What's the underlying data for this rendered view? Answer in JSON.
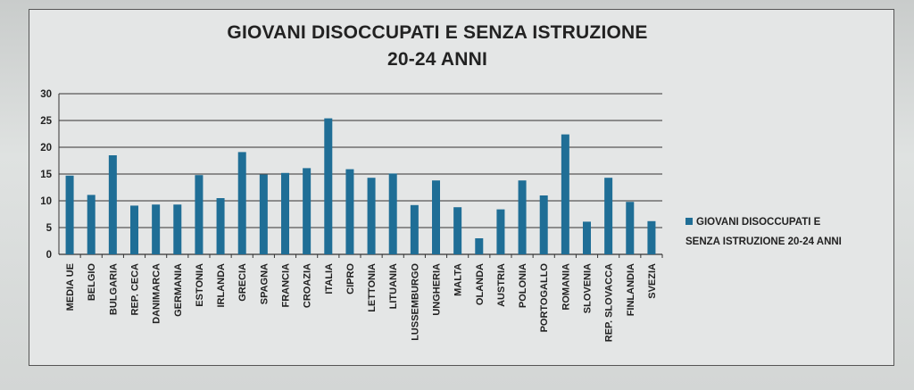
{
  "chart_data": {
    "type": "bar",
    "title_line1": "GIOVANI DISOCCUPATI E SENZA ISTRUZIONE",
    "title_line2": "20-24 ANNI",
    "categories": [
      "MEDIA UE",
      "BELGIO",
      "BULGARIA",
      "REP. CECA",
      "DANIMARCA",
      "GERMANIA",
      "ESTONIA",
      "IRLANDA",
      "GRECIA",
      "SPAGNA",
      "FRANCIA",
      "CROAZIA",
      "ITALIA",
      "CIPRO",
      "LETTONIA",
      "LITUANIA",
      "LUSSEMBURGO",
      "UNGHERIA",
      "MALTA",
      "OLANDA",
      "AUSTRIA",
      "POLONIA",
      "PORTOGALLO",
      "ROMANIA",
      "SLOVENIA",
      "REP. SLOVACCA",
      "FINLANDIA",
      "SVEZIA"
    ],
    "series": [
      {
        "name_line1": "GIOVANI DISOCCUPATI E",
        "name_line2": "SENZA ISTRUZIONE  20-24 ANNI",
        "values": [
          14.7,
          11.1,
          18.5,
          9.1,
          9.3,
          9.3,
          14.8,
          10.5,
          19.1,
          14.9,
          15.2,
          16.1,
          25.4,
          15.9,
          14.3,
          15.1,
          9.2,
          13.8,
          8.8,
          3.0,
          8.4,
          13.8,
          11.0,
          22.4,
          6.1,
          14.3,
          9.8,
          6.2
        ]
      }
    ],
    "y_ticks": [
      "0",
      "5",
      "10",
      "15",
      "20",
      "25",
      "30"
    ],
    "ylim": [
      0,
      30
    ],
    "grid": true,
    "legend_position": "right",
    "bar_color": "#1f6e96"
  }
}
